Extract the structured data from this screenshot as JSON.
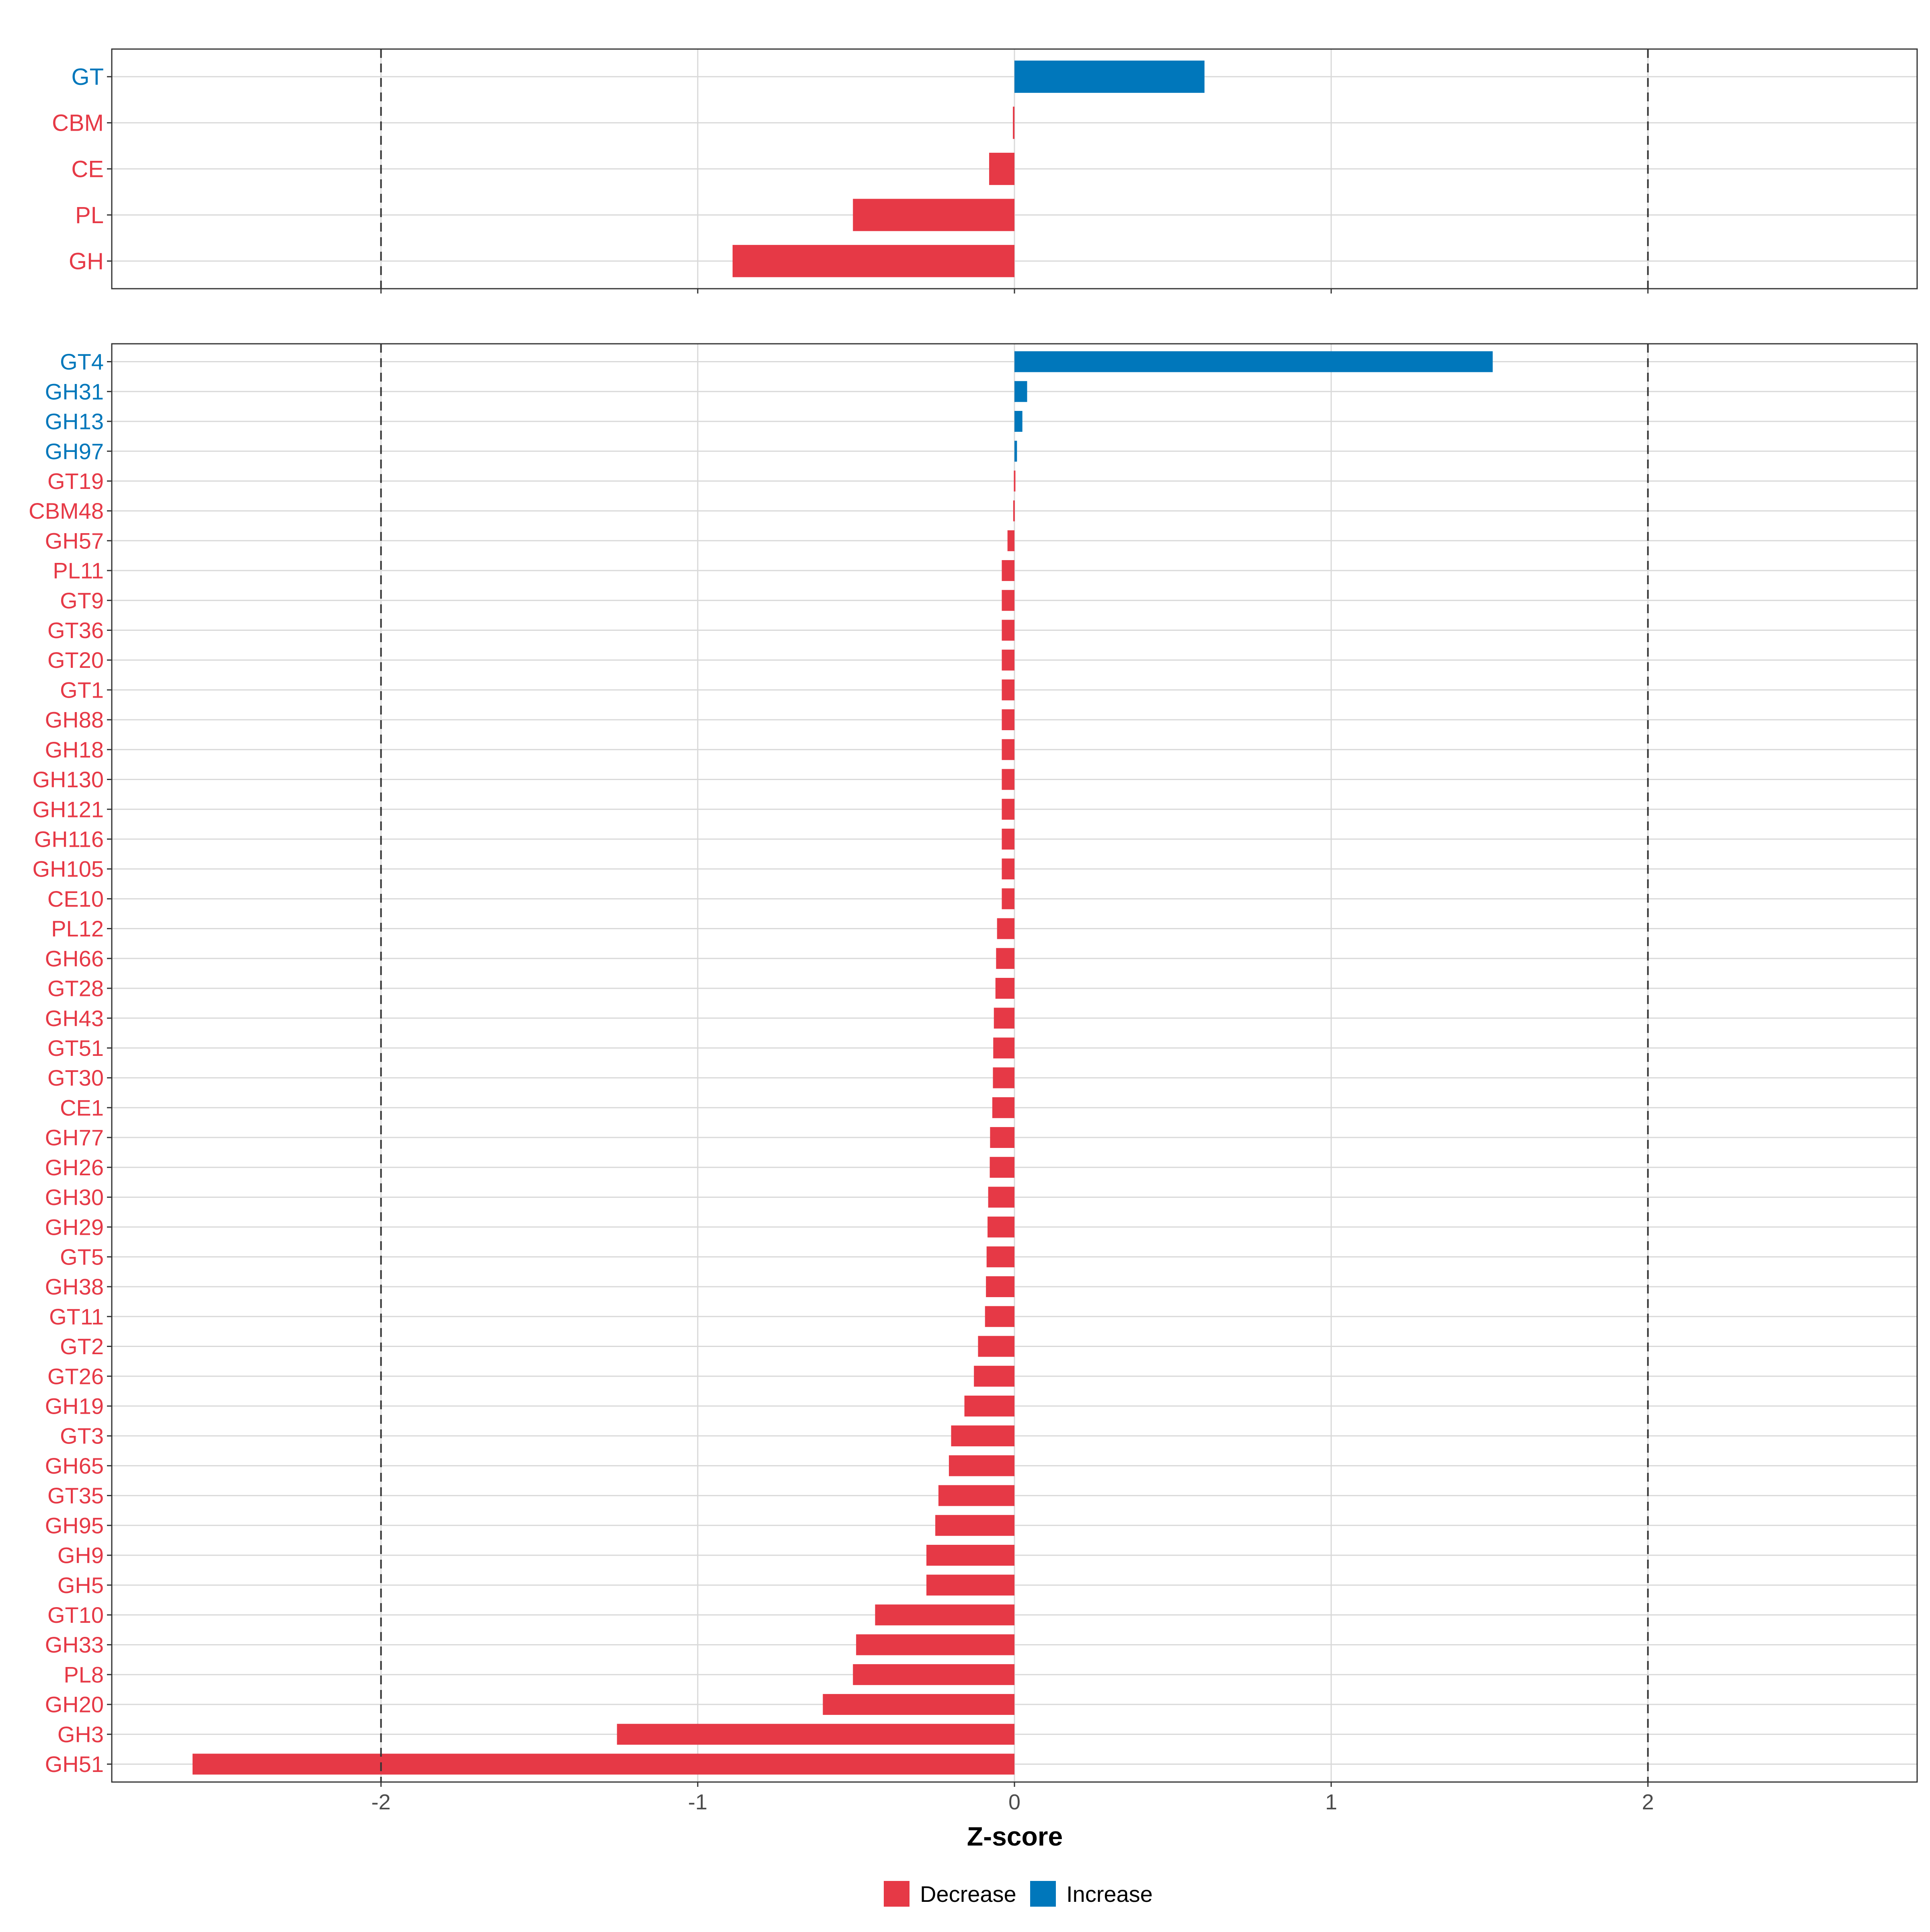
{
  "colors": {
    "decrease": "#E63946",
    "increase": "#0077BB",
    "grid": "#D9D9D9",
    "panel_border": "#333333",
    "reference_line": "#333333",
    "tick_text": "#4D4D4D",
    "axis_title": "#000000"
  },
  "x_ticks": [
    "-2",
    "-1",
    "0",
    "1",
    "2"
  ],
  "x_axis_title": "Z-score",
  "legend": {
    "decrease_label": "Decrease",
    "increase_label": "Increase"
  },
  "chart_data": [
    {
      "type": "bar",
      "orientation": "horizontal",
      "panel": "class",
      "xlim": [
        -2.85,
        2.85
      ],
      "reference_lines": [
        -2,
        2
      ],
      "grid": true,
      "categories": [
        "GT",
        "CBM",
        "CE",
        "PL",
        "GH"
      ],
      "values": [
        0.6,
        -0.005,
        -0.08,
        -0.51,
        -0.89
      ],
      "direction": [
        "Increase",
        "Decrease",
        "Decrease",
        "Decrease",
        "Decrease"
      ]
    },
    {
      "type": "bar",
      "orientation": "horizontal",
      "panel": "family",
      "xlim": [
        -2.85,
        2.85
      ],
      "reference_lines": [
        -2,
        2
      ],
      "grid": true,
      "categories": [
        "GT4",
        "GH31",
        "GH13",
        "GH97",
        "GT19",
        "CBM48",
        "GH57",
        "PL11",
        "GT9",
        "GT36",
        "GT20",
        "GT1",
        "GH88",
        "GH18",
        "GH130",
        "GH121",
        "GH116",
        "GH105",
        "CE10",
        "PL12",
        "GH66",
        "GT28",
        "GH43",
        "GT51",
        "GT30",
        "CE1",
        "GH77",
        "GH26",
        "GH30",
        "GH29",
        "GT5",
        "GH38",
        "GT11",
        "GT2",
        "GT26",
        "GH19",
        "GT3",
        "GH65",
        "GT35",
        "GH95",
        "GH9",
        "GH5",
        "GT10",
        "GH33",
        "PL8",
        "GH20",
        "GH3",
        "GH51"
      ],
      "values": [
        1.51,
        0.04,
        0.025,
        0.008,
        -0.002,
        -0.004,
        -0.022,
        -0.04,
        -0.04,
        -0.04,
        -0.04,
        -0.04,
        -0.04,
        -0.04,
        -0.04,
        -0.04,
        -0.04,
        -0.04,
        -0.04,
        -0.055,
        -0.058,
        -0.06,
        -0.065,
        -0.067,
        -0.068,
        -0.07,
        -0.077,
        -0.078,
        -0.083,
        -0.085,
        -0.088,
        -0.09,
        -0.093,
        -0.115,
        -0.128,
        -0.158,
        -0.2,
        -0.207,
        -0.24,
        -0.25,
        -0.278,
        -0.278,
        -0.44,
        -0.5,
        -0.51,
        -0.605,
        -1.255,
        -2.595
      ],
      "direction": [
        "Increase",
        "Increase",
        "Increase",
        "Increase",
        "Decrease",
        "Decrease",
        "Decrease",
        "Decrease",
        "Decrease",
        "Decrease",
        "Decrease",
        "Decrease",
        "Decrease",
        "Decrease",
        "Decrease",
        "Decrease",
        "Decrease",
        "Decrease",
        "Decrease",
        "Decrease",
        "Decrease",
        "Decrease",
        "Decrease",
        "Decrease",
        "Decrease",
        "Decrease",
        "Decrease",
        "Decrease",
        "Decrease",
        "Decrease",
        "Decrease",
        "Decrease",
        "Decrease",
        "Decrease",
        "Decrease",
        "Decrease",
        "Decrease",
        "Decrease",
        "Decrease",
        "Decrease",
        "Decrease",
        "Decrease",
        "Decrease",
        "Decrease",
        "Decrease",
        "Decrease",
        "Decrease",
        "Decrease"
      ]
    }
  ]
}
